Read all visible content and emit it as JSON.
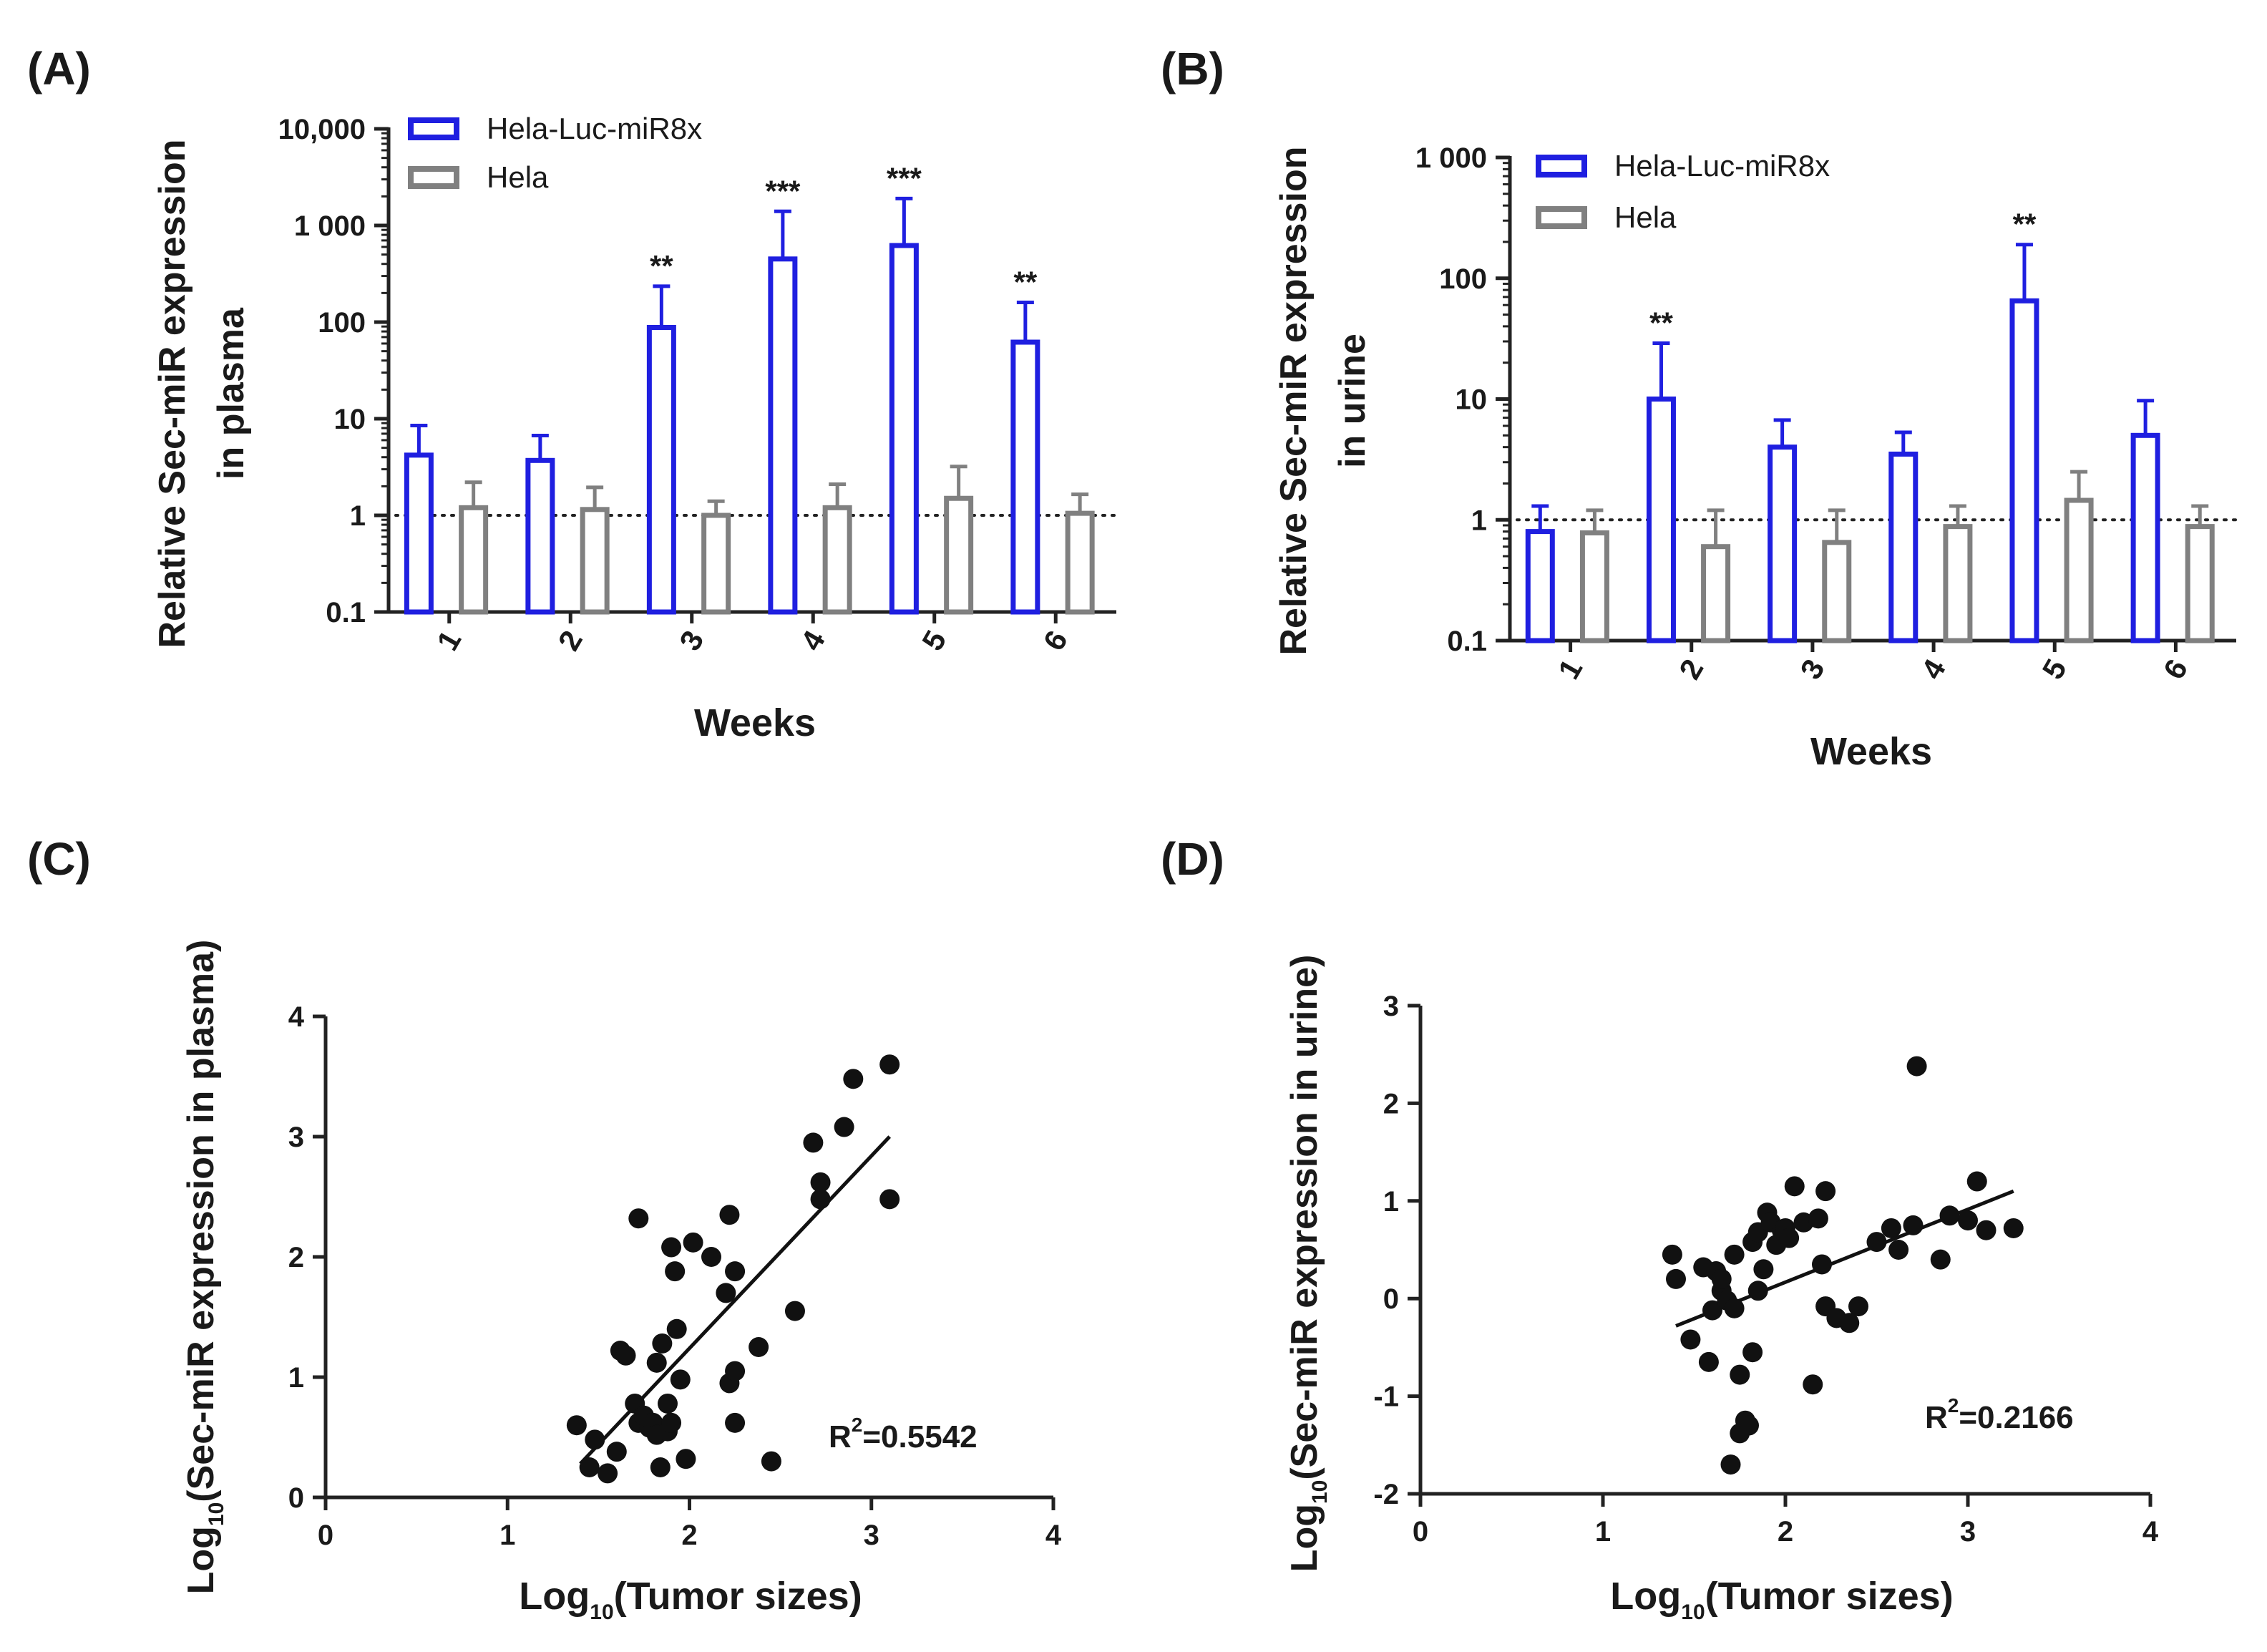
{
  "chart_data": [
    {
      "panel": "(A)",
      "type": "bar",
      "yscale": "log",
      "ylabel_lines": [
        "Relative Sec-miR expression",
        "in plasma"
      ],
      "xlabel": "Weeks",
      "categories": [
        "1",
        "2",
        "3",
        "4",
        "5",
        "6"
      ],
      "ylim": [
        0.1,
        10000
      ],
      "yticks": [
        {
          "value": 0.1,
          "label": "0.1"
        },
        {
          "value": 1,
          "label": "1"
        },
        {
          "value": 10,
          "label": "10"
        },
        {
          "value": 100,
          "label": "100"
        },
        {
          "value": 1000,
          "label": "1 000"
        },
        {
          "value": 10000,
          "label": "10,000"
        }
      ],
      "reference_line": 1,
      "series": [
        {
          "name": "Hela-Luc-miR8x",
          "color": "#1f1fe0",
          "values": [
            4.2,
            3.7,
            88,
            450,
            620,
            62
          ],
          "err_upper": [
            8.5,
            6.7,
            235,
            1400,
            1900,
            160
          ]
        },
        {
          "name": "Hela",
          "color": "#808080",
          "values": [
            1.2,
            1.15,
            1.0,
            1.2,
            1.5,
            1.05
          ],
          "err_upper": [
            2.2,
            1.95,
            1.4,
            2.1,
            3.2,
            1.65
          ]
        }
      ],
      "significance": [
        "",
        "",
        "**",
        "***",
        "***",
        "**"
      ]
    },
    {
      "panel": "(B)",
      "type": "bar",
      "yscale": "log",
      "ylabel_lines": [
        "Relative Sec-miR expression",
        "in urine"
      ],
      "xlabel": "Weeks",
      "categories": [
        "1",
        "2",
        "3",
        "4",
        "5",
        "6"
      ],
      "ylim": [
        0.1,
        1000
      ],
      "yticks": [
        {
          "value": 0.1,
          "label": "0.1"
        },
        {
          "value": 1,
          "label": "1"
        },
        {
          "value": 10,
          "label": "10"
        },
        {
          "value": 100,
          "label": "100"
        },
        {
          "value": 1000,
          "label": "1 000"
        }
      ],
      "reference_line": 1,
      "series": [
        {
          "name": "Hela-Luc-miR8x",
          "color": "#1f1fe0",
          "values": [
            0.8,
            10,
            4.0,
            3.5,
            65,
            5.0
          ],
          "err_upper": [
            1.3,
            29,
            6.7,
            5.3,
            190,
            9.7
          ]
        },
        {
          "name": "Hela",
          "color": "#808080",
          "values": [
            0.78,
            0.6,
            0.65,
            0.88,
            1.45,
            0.88
          ],
          "err_upper": [
            1.2,
            1.2,
            1.2,
            1.3,
            2.5,
            1.3
          ]
        }
      ],
      "significance": [
        "",
        "**",
        "",
        "",
        "**",
        ""
      ]
    },
    {
      "panel": "(C)",
      "type": "scatter",
      "ylabel_prefix": "Log",
      "ylabel_sub": "10",
      "ylabel_rest": "(Sec-miR expression in plasma)",
      "xlabel_prefix": "Log",
      "xlabel_sub": "10",
      "xlabel_rest": "(Tumor sizes)",
      "xlim": [
        0,
        4
      ],
      "ylim": [
        0,
        4
      ],
      "xticks": [
        "0",
        "1",
        "2",
        "3",
        "4"
      ],
      "yticks": [
        "0",
        "1",
        "2",
        "3",
        "4"
      ],
      "r2_prefix": "R",
      "r2_exp": "2",
      "r2_value": "=0.5542",
      "fit": {
        "x": [
          1.4,
          3.1
        ],
        "y": [
          0.28,
          3.0
        ]
      },
      "points": [
        [
          1.38,
          0.6
        ],
        [
          1.45,
          0.25
        ],
        [
          1.48,
          0.48
        ],
        [
          1.55,
          0.2
        ],
        [
          1.6,
          0.38
        ],
        [
          1.62,
          1.22
        ],
        [
          1.65,
          1.18
        ],
        [
          1.7,
          0.78
        ],
        [
          1.72,
          2.32
        ],
        [
          1.72,
          0.62
        ],
        [
          1.75,
          0.68
        ],
        [
          1.78,
          0.58
        ],
        [
          1.8,
          0.62
        ],
        [
          1.82,
          1.12
        ],
        [
          1.82,
          0.52
        ],
        [
          1.84,
          0.25
        ],
        [
          1.85,
          1.28
        ],
        [
          1.88,
          0.78
        ],
        [
          1.88,
          0.55
        ],
        [
          1.9,
          0.62
        ],
        [
          1.9,
          2.08
        ],
        [
          1.92,
          1.88
        ],
        [
          1.93,
          1.4
        ],
        [
          1.95,
          0.98
        ],
        [
          1.98,
          0.32
        ],
        [
          2.02,
          2.12
        ],
        [
          2.12,
          2.0
        ],
        [
          2.2,
          1.7
        ],
        [
          2.22,
          2.35
        ],
        [
          2.22,
          0.95
        ],
        [
          2.25,
          1.88
        ],
        [
          2.25,
          1.05
        ],
        [
          2.25,
          0.62
        ],
        [
          2.38,
          1.25
        ],
        [
          2.45,
          0.3
        ],
        [
          2.58,
          1.55
        ],
        [
          2.68,
          2.95
        ],
        [
          2.72,
          2.62
        ],
        [
          2.72,
          2.48
        ],
        [
          2.85,
          3.08
        ],
        [
          2.9,
          3.48
        ],
        [
          3.1,
          3.6
        ],
        [
          3.1,
          2.48
        ]
      ]
    },
    {
      "panel": "(D)",
      "type": "scatter",
      "ylabel_prefix": "Log",
      "ylabel_sub": "10",
      "ylabel_rest": "(Sec-miR expression in urine)",
      "xlabel_prefix": "Log",
      "xlabel_sub": "10",
      "xlabel_rest": "(Tumor sizes)",
      "xlim": [
        0,
        4
      ],
      "ylim": [
        -2,
        3
      ],
      "xticks": [
        "0",
        "1",
        "2",
        "3",
        "4"
      ],
      "yticks": [
        "-2",
        "-1",
        "0",
        "1",
        "2",
        "3"
      ],
      "r2_prefix": "R",
      "r2_exp": "2",
      "r2_value": "=0.2166",
      "fit": {
        "x": [
          1.4,
          3.25
        ],
        "y": [
          -0.28,
          1.1
        ]
      },
      "points": [
        [
          1.38,
          0.45
        ],
        [
          1.4,
          0.2
        ],
        [
          1.48,
          -0.42
        ],
        [
          1.55,
          0.32
        ],
        [
          1.58,
          -0.65
        ],
        [
          1.6,
          -0.12
        ],
        [
          1.62,
          0.28
        ],
        [
          1.65,
          0.08
        ],
        [
          1.65,
          0.2
        ],
        [
          1.68,
          -0.02
        ],
        [
          1.7,
          -1.7
        ],
        [
          1.72,
          0.45
        ],
        [
          1.72,
          -0.1
        ],
        [
          1.75,
          -1.38
        ],
        [
          1.75,
          -0.78
        ],
        [
          1.78,
          -1.25
        ],
        [
          1.8,
          -1.3
        ],
        [
          1.82,
          -0.55
        ],
        [
          1.82,
          0.58
        ],
        [
          1.85,
          0.68
        ],
        [
          1.85,
          0.08
        ],
        [
          1.88,
          0.3
        ],
        [
          1.9,
          0.88
        ],
        [
          1.92,
          0.78
        ],
        [
          1.95,
          0.55
        ],
        [
          1.98,
          0.7
        ],
        [
          2.0,
          0.72
        ],
        [
          2.02,
          0.62
        ],
        [
          2.05,
          1.15
        ],
        [
          2.1,
          0.78
        ],
        [
          2.15,
          -0.88
        ],
        [
          2.18,
          0.82
        ],
        [
          2.2,
          0.35
        ],
        [
          2.22,
          1.1
        ],
        [
          2.22,
          -0.08
        ],
        [
          2.28,
          -0.2
        ],
        [
          2.35,
          -0.25
        ],
        [
          2.4,
          -0.08
        ],
        [
          2.5,
          0.58
        ],
        [
          2.58,
          0.72
        ],
        [
          2.62,
          0.5
        ],
        [
          2.7,
          0.75
        ],
        [
          2.72,
          2.38
        ],
        [
          2.85,
          0.4
        ],
        [
          2.9,
          0.85
        ],
        [
          3.0,
          0.8
        ],
        [
          3.05,
          1.2
        ],
        [
          3.1,
          0.7
        ],
        [
          3.25,
          0.72
        ]
      ]
    }
  ]
}
